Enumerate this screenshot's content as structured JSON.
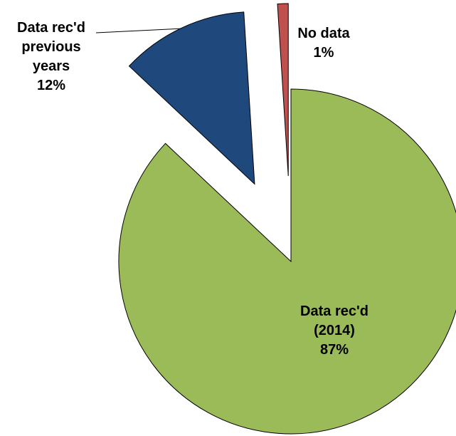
{
  "chart_data": {
    "type": "pie",
    "categories": [
      "Data rec'd (2014)",
      "Data rec'd previous years",
      "No data"
    ],
    "values": [
      87,
      12,
      1
    ],
    "value_labels": [
      "87%",
      "12%",
      "1%"
    ],
    "colors": [
      "#9bbb59",
      "#1f497d",
      "#c0504d"
    ],
    "start_angle": 0,
    "direction": "clockwise",
    "exploded": [
      false,
      true,
      true
    ]
  }
}
